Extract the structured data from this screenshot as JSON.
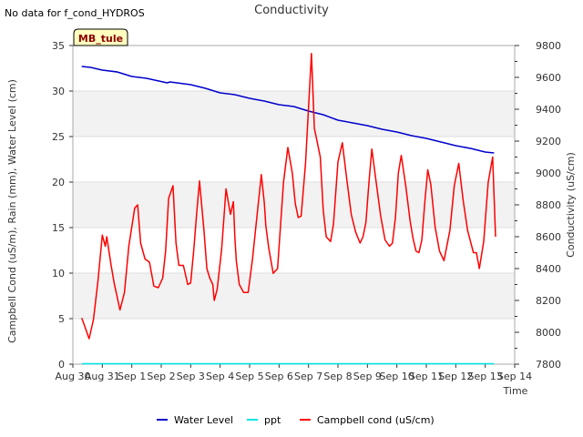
{
  "chart_data": {
    "type": "line",
    "title": "Conductivity",
    "no_data_note": "No data for f_cond_HYDROS",
    "site_badge": "MB_tule",
    "xlabel": "Time",
    "ylabel_left": "Campbell Cond (uS/m), Rain (mm), Water Level (cm)",
    "ylabel_right": "Conductivity (uS/cm)",
    "x_tick_labels": [
      "Aug 30",
      "Aug 31",
      "Sep 1",
      "Sep 2",
      "Sep 3",
      "Sep 4",
      "Sep 5",
      "Sep 6",
      "Sep 7",
      "Sep 8",
      "Sep 9",
      "Sep 10",
      "Sep 11",
      "Sep 12",
      "Sep 13",
      "Sep 14"
    ],
    "xlim_days": [
      0,
      15
    ],
    "ylim_left": [
      0,
      35
    ],
    "yticks_left": [
      0,
      5,
      10,
      15,
      20,
      25,
      30,
      35
    ],
    "ylim_right": [
      7800,
      9800
    ],
    "yticks_right": [
      7800,
      8000,
      8200,
      8400,
      8600,
      8800,
      9000,
      9200,
      9400,
      9600,
      9800
    ],
    "legend": [
      "Water Level",
      "ppt",
      "Campbell cond (uS/cm)"
    ],
    "legend_position": "bottom-center",
    "series": [
      {
        "name": "Water Level",
        "color": "#0000cc",
        "axis": "left",
        "x": [
          0.3,
          0.6,
          1.0,
          1.5,
          2.0,
          2.5,
          3.2,
          3.3,
          4.0,
          4.5,
          5.0,
          5.5,
          6.0,
          6.5,
          7.0,
          7.5,
          8.0,
          8.5,
          9.0,
          9.5,
          10.0,
          10.5,
          11.0,
          11.5,
          12.0,
          12.5,
          13.0,
          13.5,
          14.0,
          14.3
        ],
        "y": [
          32.7,
          32.6,
          32.3,
          32.1,
          31.6,
          31.4,
          30.9,
          31.0,
          30.7,
          30.3,
          29.8,
          29.6,
          29.2,
          28.9,
          28.5,
          28.3,
          27.8,
          27.4,
          26.8,
          26.5,
          26.2,
          25.8,
          25.5,
          25.1,
          24.8,
          24.4,
          24.0,
          23.7,
          23.3,
          23.2
        ]
      },
      {
        "name": "ppt",
        "color": "#00e5e5",
        "axis": "left",
        "x": [
          0.3,
          14.3
        ],
        "y": [
          0.05,
          0.05
        ]
      },
      {
        "name": "Campbell cond (uS/cm)",
        "color": "#ff0000",
        "axis": "right",
        "x": [
          0.3,
          0.4,
          0.55,
          0.7,
          0.85,
          1.0,
          1.1,
          1.15,
          1.3,
          1.4,
          1.6,
          1.75,
          1.9,
          2.1,
          2.2,
          2.3,
          2.45,
          2.6,
          2.75,
          2.9,
          3.05,
          3.15,
          3.25,
          3.4,
          3.5,
          3.6,
          3.75,
          3.9,
          4.0,
          4.1,
          4.2,
          4.3,
          4.45,
          4.55,
          4.65,
          4.75,
          4.8,
          4.9,
          5.05,
          5.2,
          5.35,
          5.45,
          5.5,
          5.55,
          5.65,
          5.8,
          5.95,
          6.1,
          6.25,
          6.4,
          6.5,
          6.55,
          6.65,
          6.8,
          6.95,
          7.15,
          7.3,
          7.45,
          7.55,
          7.65,
          7.75,
          7.9,
          8.1,
          8.2,
          8.3,
          8.4,
          8.5,
          8.6,
          8.7,
          8.75,
          8.85,
          9.0,
          9.15,
          9.3,
          9.45,
          9.6,
          9.75,
          9.85,
          9.95,
          10.05,
          10.15,
          10.3,
          10.45,
          10.6,
          10.75,
          10.85,
          10.95,
          11.05,
          11.15,
          11.3,
          11.45,
          11.55,
          11.65,
          11.75,
          11.85,
          11.95,
          12.05,
          12.15,
          12.3,
          12.45,
          12.6,
          12.8,
          12.95,
          13.1,
          13.25,
          13.4,
          13.5,
          13.6,
          13.7,
          13.8,
          13.95,
          14.1,
          14.25,
          14.35
        ],
        "y": [
          8090,
          8040,
          7960,
          8080,
          8320,
          8610,
          8540,
          8600,
          8420,
          8310,
          8140,
          8250,
          8540,
          8780,
          8800,
          8560,
          8460,
          8440,
          8290,
          8280,
          8340,
          8510,
          8840,
          8920,
          8560,
          8420,
          8420,
          8300,
          8310,
          8510,
          8740,
          8950,
          8640,
          8400,
          8340,
          8300,
          8200,
          8270,
          8520,
          8900,
          8740,
          8820,
          8600,
          8450,
          8300,
          8250,
          8250,
          8460,
          8730,
          8990,
          8810,
          8670,
          8530,
          8370,
          8400,
          8940,
          9160,
          9000,
          8810,
          8720,
          8730,
          9060,
          9750,
          9280,
          9190,
          9100,
          8770,
          8600,
          8580,
          8570,
          8680,
          9070,
          9190,
          8960,
          8740,
          8630,
          8560,
          8600,
          8690,
          8940,
          9150,
          8940,
          8730,
          8580,
          8540,
          8560,
          8720,
          9000,
          9110,
          8920,
          8700,
          8590,
          8510,
          8500,
          8580,
          8820,
          9020,
          8930,
          8660,
          8510,
          8450,
          8640,
          8920,
          9060,
          8830,
          8640,
          8570,
          8500,
          8500,
          8400,
          8570,
          8940,
          9100,
          8600
        ]
      }
    ]
  }
}
